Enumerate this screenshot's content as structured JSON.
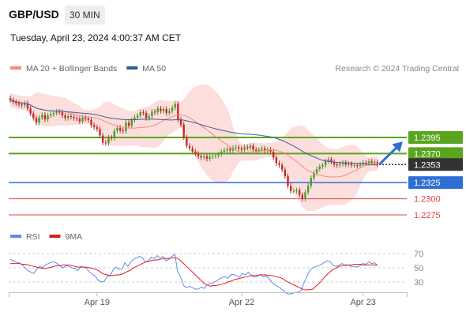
{
  "header": {
    "symbol": "GBP/USD",
    "timeframe": "30 MIN",
    "datetime": "Tuesday, April 23, 2024 4:00:37 AM CET"
  },
  "chart_data": [
    {
      "type": "candlestick",
      "title": "",
      "legend": [
        {
          "label": "MA 20 + Bollinger Bands",
          "color": "#f28b82"
        },
        {
          "label": "MA 50",
          "color": "#2e5c99"
        }
      ],
      "legend_placement": "top-left",
      "attribution": "Research © 2024 Trading Central",
      "x_ticks": [
        "Apr 19",
        "Apr 22",
        "Apr 23"
      ],
      "grid": false,
      "last_price": {
        "value": 1.2353,
        "label": "1.2353",
        "color": "#333333"
      },
      "levels": [
        {
          "label": "1.2395",
          "value": 1.2395,
          "color": "#5aa51e",
          "kind": "resistance"
        },
        {
          "label": "1.2370",
          "value": 1.237,
          "color": "#5aa51e",
          "kind": "resistance"
        },
        {
          "label": "1.2325",
          "value": 1.2325,
          "color": "#2e6fd6",
          "kind": "pivot"
        },
        {
          "label": "1.2300",
          "value": 1.23,
          "color": "#e54343",
          "kind": "support"
        },
        {
          "label": "1.2275",
          "value": 1.2275,
          "color": "#e54343",
          "kind": "support"
        }
      ],
      "projection": {
        "direction": "up",
        "color": "#2e6fd6"
      },
      "closes": [
        1.2453,
        1.245,
        1.2448,
        1.2446,
        1.2445,
        1.2448,
        1.244,
        1.2432,
        1.2425,
        1.2418,
        1.2426,
        1.243,
        1.2423,
        1.2429,
        1.2431,
        1.2433,
        1.2435,
        1.2434,
        1.2429,
        1.2425,
        1.2428,
        1.2427,
        1.2425,
        1.2424,
        1.242,
        1.2426,
        1.2424,
        1.2422,
        1.2414,
        1.2411,
        1.2408,
        1.2398,
        1.2387,
        1.2386,
        1.2395,
        1.2394,
        1.2405,
        1.241,
        1.2406,
        1.2405,
        1.2418,
        1.2413,
        1.2422,
        1.2426,
        1.2429,
        1.2434,
        1.2433,
        1.2425,
        1.2428,
        1.2435,
        1.2434,
        1.244,
        1.2436,
        1.2439,
        1.2433,
        1.2436,
        1.2441,
        1.2447,
        1.2423,
        1.2415,
        1.2395,
        1.2382,
        1.2378,
        1.2373,
        1.237,
        1.2366,
        1.2364,
        1.2366,
        1.2362,
        1.2365,
        1.2366,
        1.2367,
        1.2369,
        1.2373,
        1.2375,
        1.2377,
        1.2375,
        1.2379,
        1.238,
        1.2378,
        1.2376,
        1.238,
        1.2379,
        1.2382,
        1.2376,
        1.2374,
        1.2376,
        1.2378,
        1.2374,
        1.2376,
        1.2373,
        1.2364,
        1.2355,
        1.2352,
        1.2345,
        1.2335,
        1.232,
        1.2312,
        1.2312,
        1.2313,
        1.2306,
        1.23,
        1.231,
        1.232,
        1.2332,
        1.234,
        1.2346,
        1.235,
        1.2352,
        1.2358,
        1.2361,
        1.2357,
        1.2353,
        1.2352,
        1.2354,
        1.2356,
        1.2353,
        1.2354,
        1.2352,
        1.2352,
        1.2351,
        1.2353,
        1.2356,
        1.2355,
        1.2358,
        1.2356,
        1.2357,
        1.2353
      ]
    },
    {
      "type": "line",
      "legend": [
        {
          "label": "RSI",
          "color": "#5b8def"
        },
        {
          "label": "9MA",
          "color": "#e01e1e"
        }
      ],
      "y_ticks": [
        70,
        50,
        30
      ],
      "ylim": [
        20,
        80
      ],
      "series": [
        {
          "name": "RSI",
          "color": "#5b8def",
          "values": [
            62,
            60,
            58,
            57,
            55,
            50,
            46,
            44,
            42,
            48,
            52,
            50,
            54,
            56,
            58,
            58,
            56,
            52,
            50,
            53,
            52,
            50,
            49,
            46,
            52,
            51,
            49,
            44,
            41,
            38,
            32,
            30,
            31,
            38,
            39,
            47,
            51,
            48,
            48,
            57,
            52,
            58,
            62,
            64,
            66,
            64,
            58,
            60,
            65,
            63,
            67,
            64,
            66,
            60,
            62,
            66,
            69,
            44,
            37,
            25,
            22,
            24,
            22,
            20,
            20,
            23,
            21,
            26,
            28,
            29,
            31,
            34,
            36,
            38,
            35,
            40,
            41,
            39,
            37,
            42,
            40,
            44,
            40,
            37,
            38,
            41,
            37,
            39,
            35,
            30,
            26,
            24,
            21,
            18,
            14,
            13,
            14,
            15,
            16,
            18,
            29,
            38,
            47,
            50,
            52,
            53,
            55,
            58,
            60,
            58,
            53,
            52,
            54,
            56,
            53,
            54,
            52,
            52,
            51,
            53,
            56,
            55,
            58,
            56,
            57,
            53
          ]
        },
        {
          "name": "9MA",
          "color": "#e01e1e",
          "values": [
            56,
            56,
            56,
            56,
            55,
            55,
            54,
            53,
            52,
            51,
            50,
            49,
            49,
            50,
            51,
            52,
            53,
            53,
            54,
            54,
            54,
            53,
            52,
            51,
            51,
            51,
            51,
            50,
            49,
            48,
            46,
            43,
            41,
            40,
            39,
            39,
            40,
            40,
            41,
            43,
            45,
            47,
            50,
            52,
            54,
            56,
            58,
            59,
            60,
            61,
            61,
            62,
            63,
            63,
            63,
            64,
            64,
            63,
            60,
            56,
            52,
            48,
            44,
            40,
            36,
            32,
            28,
            26,
            24,
            25,
            25,
            26,
            27,
            28,
            30,
            31,
            33,
            34,
            35,
            36,
            37,
            38,
            39,
            39,
            39,
            40,
            40,
            40,
            39,
            39,
            38,
            37,
            36,
            34,
            31,
            29,
            27,
            25,
            23,
            21,
            19,
            19,
            19,
            20,
            24,
            28,
            32,
            37,
            41,
            45,
            48,
            50,
            52,
            53,
            54,
            54,
            54,
            55,
            55,
            55,
            54,
            54,
            54,
            54,
            54,
            54
          ]
        }
      ]
    }
  ]
}
